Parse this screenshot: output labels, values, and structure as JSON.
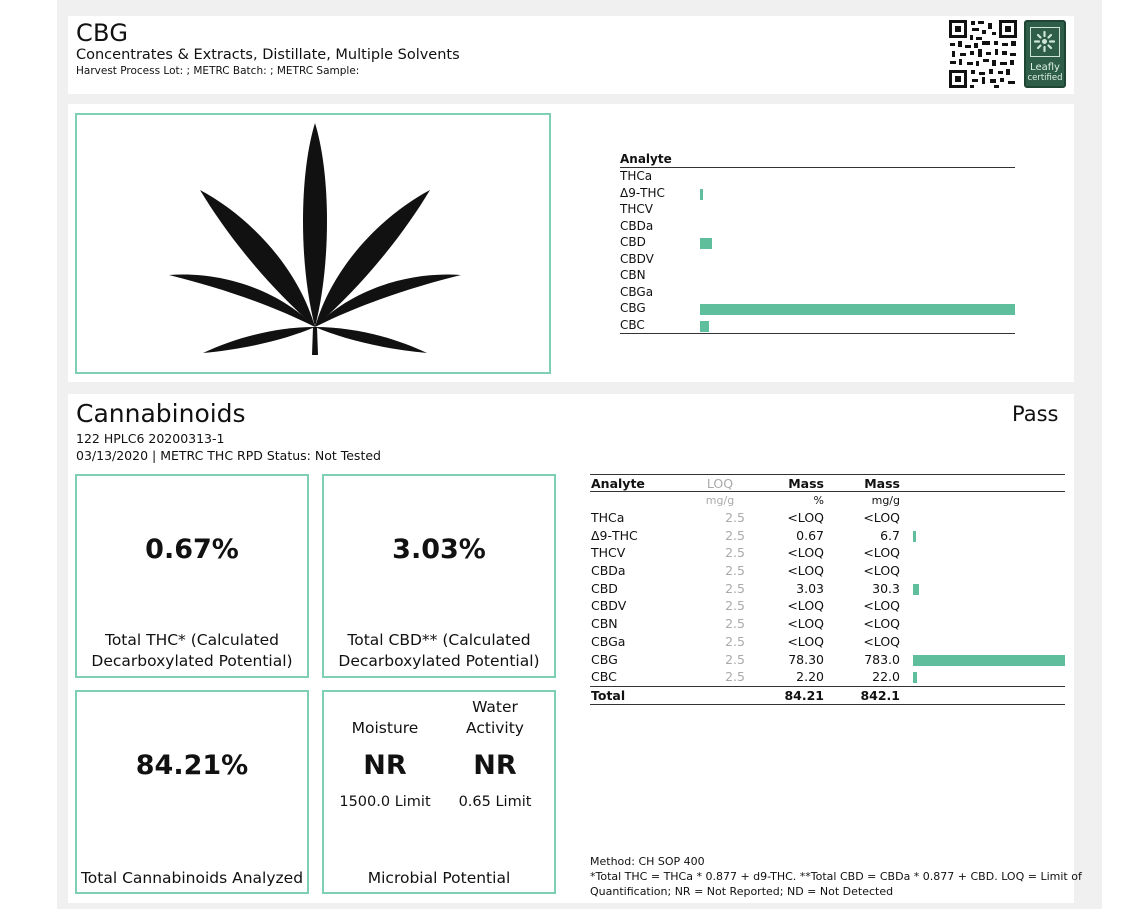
{
  "colors": {
    "accent": "#5fbf9d",
    "accent_border": "#7ecfb4",
    "leafly_green": "#2e5e48"
  },
  "header": {
    "title": "CBG",
    "subtitle": "Concentrates & Extracts, Distillate, Multiple Solvents",
    "lot_info": "Harvest Process Lot: ; METRC Batch: ; METRC Sample:",
    "qr_icon": "qr-code-icon",
    "badge": {
      "icon": "leafly-logo-icon",
      "line1": "Leafly",
      "line2": "certified"
    }
  },
  "overview": {
    "image_icon": "cannabis-leaf-icon",
    "header": "Analyte",
    "analytes": [
      {
        "name": "THCa",
        "bar": 0
      },
      {
        "name": "Δ9-THC",
        "bar": 0.67
      },
      {
        "name": "THCV",
        "bar": 0
      },
      {
        "name": "CBDa",
        "bar": 0
      },
      {
        "name": "CBD",
        "bar": 3.03
      },
      {
        "name": "CBDV",
        "bar": 0
      },
      {
        "name": "CBN",
        "bar": 0
      },
      {
        "name": "CBGa",
        "bar": 0
      },
      {
        "name": "CBG",
        "bar": 78.3
      },
      {
        "name": "CBC",
        "bar": 2.2
      }
    ]
  },
  "cannabinoids": {
    "title": "Cannabinoids",
    "status": "Pass",
    "instrument": "122 HPLC6 20200313-1",
    "date_line": "03/13/2020 | METRC THC RPD Status: Not Tested",
    "total_thc": {
      "value": "0.67%",
      "label_line1": "Total THC* (Calculated",
      "label_line2": "Decarboxylated Potential)"
    },
    "total_cbd": {
      "value": "3.03%",
      "label_line1": "Total CBD** (Calculated",
      "label_line2": "Decarboxylated Potential)"
    },
    "total_analyzed": {
      "value": "84.21%",
      "label": "Total Cannabinoids Analyzed"
    },
    "microbial": {
      "moisture_label": "Moisture",
      "moisture_value": "NR",
      "moisture_limit": "1500.0 Limit",
      "water_label_line1": "Water",
      "water_label_line2": "Activity",
      "water_value": "NR",
      "water_limit": "0.65 Limit",
      "label": "Microbial Potential"
    },
    "table": {
      "headers": {
        "analyte": "Analyte",
        "loq": "LOQ",
        "mass_pct": "Mass",
        "mass_mg": "Mass"
      },
      "units": {
        "loq": "mg/g",
        "mass_pct": "%",
        "mass_mg": "mg/g"
      },
      "rows": [
        {
          "name": "THCa",
          "loq": "2.5",
          "pct": "<LOQ",
          "mg": "<LOQ",
          "bar": 0
        },
        {
          "name": "Δ9-THC",
          "loq": "2.5",
          "pct": "0.67",
          "mg": "6.7",
          "bar": 0.67
        },
        {
          "name": "THCV",
          "loq": "2.5",
          "pct": "<LOQ",
          "mg": "<LOQ",
          "bar": 0
        },
        {
          "name": "CBDa",
          "loq": "2.5",
          "pct": "<LOQ",
          "mg": "<LOQ",
          "bar": 0
        },
        {
          "name": "CBD",
          "loq": "2.5",
          "pct": "3.03",
          "mg": "30.3",
          "bar": 3.03
        },
        {
          "name": "CBDV",
          "loq": "2.5",
          "pct": "<LOQ",
          "mg": "<LOQ",
          "bar": 0
        },
        {
          "name": "CBN",
          "loq": "2.5",
          "pct": "<LOQ",
          "mg": "<LOQ",
          "bar": 0
        },
        {
          "name": "CBGa",
          "loq": "2.5",
          "pct": "<LOQ",
          "mg": "<LOQ",
          "bar": 0
        },
        {
          "name": "CBG",
          "loq": "2.5",
          "pct": "78.30",
          "mg": "783.0",
          "bar": 78.3
        },
        {
          "name": "CBC",
          "loq": "2.5",
          "pct": "2.20",
          "mg": "22.0",
          "bar": 2.2
        }
      ],
      "total": {
        "name": "Total",
        "pct": "84.21",
        "mg": "842.1"
      }
    },
    "method": "Method: CH SOP 400",
    "footnote_line1": "*Total THC = THCa * 0.877 + d9-THC. **Total CBD = CBDa * 0.877 + CBD. LOQ = Limit of",
    "footnote_line2": "Quantification; NR = Not Reported; ND = Not Detected"
  }
}
